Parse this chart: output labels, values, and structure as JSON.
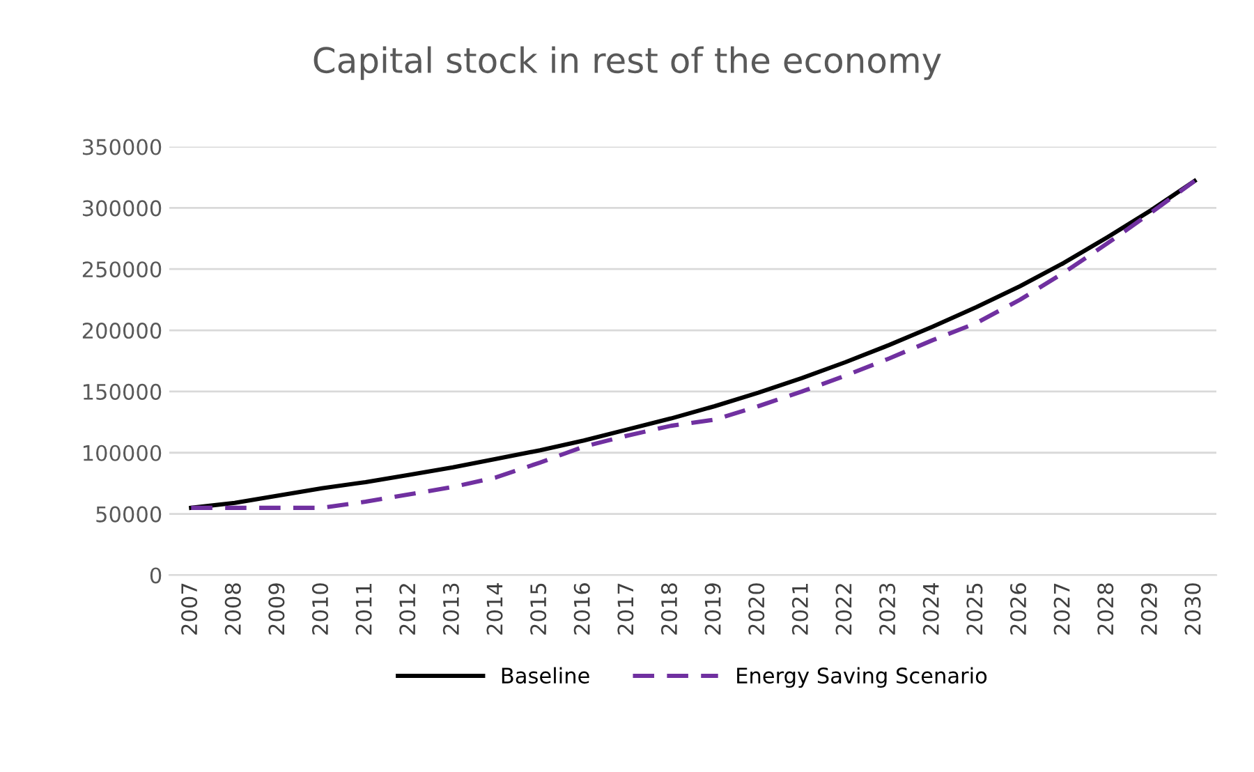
{
  "chart_data": {
    "type": "line",
    "title": "Capital stock in rest of the economy",
    "categories": [
      "2007",
      "2008",
      "2009",
      "2010",
      "2011",
      "2012",
      "2013",
      "2014",
      "2015",
      "2016",
      "2017",
      "2018",
      "2019",
      "2020",
      "2021",
      "2022",
      "2023",
      "2024",
      "2025",
      "2026",
      "2027",
      "2028",
      "2029",
      "2030"
    ],
    "series": [
      {
        "name": "Baseline",
        "color": "#000000",
        "line_style": "solid",
        "values": [
          55000,
          59000,
          65000,
          71000,
          76000,
          82000,
          88000,
          95000,
          102000,
          110000,
          119000,
          128000,
          138000,
          149000,
          161000,
          174000,
          188000,
          203000,
          219000,
          236000,
          255000,
          276000,
          298000,
          322000
        ]
      },
      {
        "name": "Energy Saving Scenario",
        "color": "#7030a0",
        "line_style": "dashed",
        "values": [
          55000,
          55000,
          55000,
          55000,
          60000,
          66000,
          72000,
          80000,
          92000,
          105000,
          114000,
          122000,
          127000,
          138000,
          150000,
          163000,
          177000,
          192000,
          206000,
          225000,
          247000,
          271000,
          296000,
          322000
        ]
      }
    ],
    "ylim": [
      0,
      350000
    ],
    "yticks": [
      0,
      50000,
      100000,
      150000,
      200000,
      250000,
      300000,
      350000
    ],
    "grid": "y",
    "legend": "bottom",
    "marker": "none"
  }
}
